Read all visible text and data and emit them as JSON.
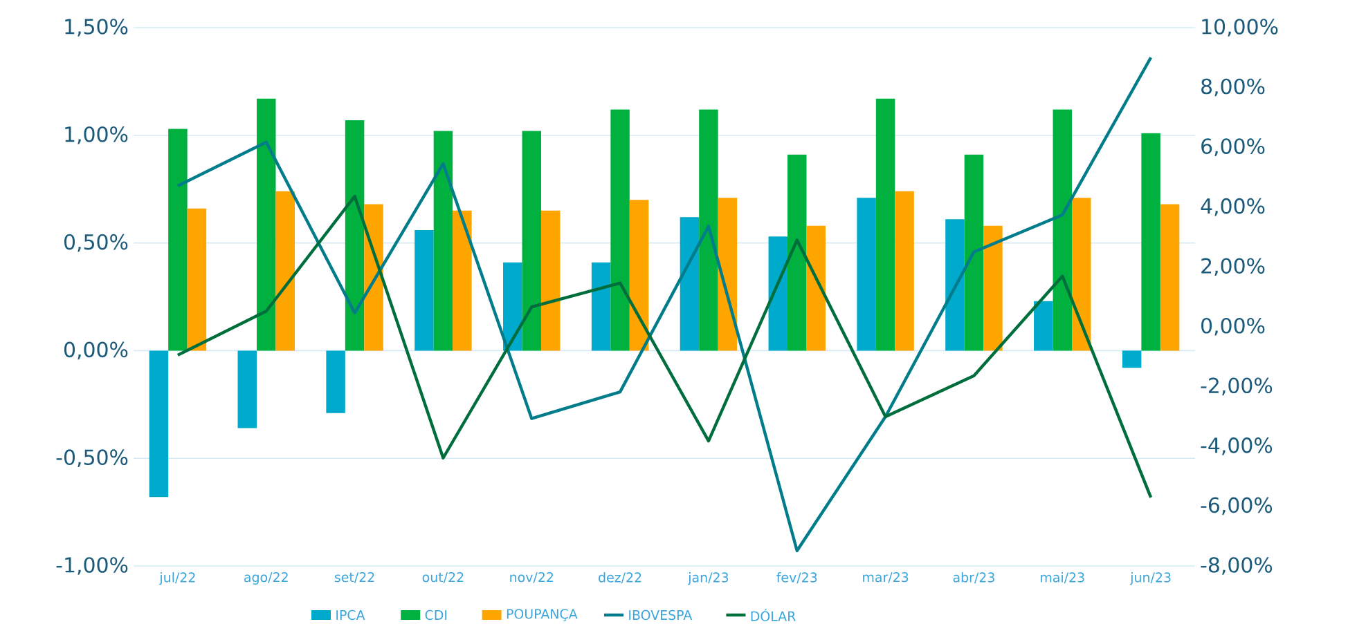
{
  "chart_data": {
    "type": "bar",
    "categories": [
      "jul/22",
      "ago/22",
      "set/22",
      "out/22",
      "nov/22",
      "dez/22",
      "jan/23",
      "fev/23",
      "mar/23",
      "abr/23",
      "mai/23",
      "jun/23"
    ],
    "series": [
      {
        "name": "IPCA",
        "color": "#00aacd",
        "values": [
          -0.68,
          -0.36,
          -0.29,
          0.56,
          0.41,
          0.41,
          0.62,
          0.53,
          0.71,
          0.61,
          0.23,
          -0.08
        ]
      },
      {
        "name": "CDI",
        "color": "#00b140",
        "values": [
          1.03,
          1.17,
          1.07,
          1.02,
          1.02,
          1.12,
          1.12,
          0.91,
          1.17,
          0.91,
          1.12,
          1.01
        ]
      },
      {
        "name": "POUPANÇA",
        "color": "#ffa500",
        "values": [
          0.66,
          0.74,
          0.68,
          0.65,
          0.65,
          0.7,
          0.71,
          0.58,
          0.74,
          0.58,
          0.71,
          0.68
        ]
      },
      {
        "name": "IBOVESPA",
        "type": "line",
        "axis": "y2",
        "color": "#007c8a",
        "values": [
          4.71,
          6.17,
          0.46,
          5.45,
          -3.07,
          -2.18,
          3.36,
          -7.49,
          -3.01,
          2.5,
          3.74,
          9.0
        ]
      },
      {
        "name": "DÓLAR",
        "type": "line",
        "axis": "y2",
        "color": "#006e3c",
        "values": [
          -0.95,
          0.52,
          4.36,
          -4.39,
          0.66,
          1.46,
          -3.82,
          2.9,
          -3.01,
          -1.64,
          1.69,
          -5.71
        ]
      }
    ],
    "ylim": [
      -1.0,
      1.5
    ],
    "yticks": [
      {
        "value": -1.0,
        "label": "-1,00%"
      },
      {
        "value": -0.5,
        "label": "-0,50%"
      },
      {
        "value": 0,
        "label": "0,00%"
      },
      {
        "value": 0.5,
        "label": "0,50%"
      },
      {
        "value": 1.0,
        "label": "1,00%"
      },
      {
        "value": 1.5,
        "label": "1,50%"
      }
    ],
    "y2lim": [
      -8,
      10
    ],
    "y2ticks": [
      {
        "value": -8,
        "label": "-8,00%"
      },
      {
        "value": -6,
        "label": "-6,00%"
      },
      {
        "value": -4,
        "label": "-4,00%"
      },
      {
        "value": -2,
        "label": "-2,00%"
      },
      {
        "value": 0,
        "label": "0,00%"
      },
      {
        "value": 2,
        "label": "2,00%"
      },
      {
        "value": 4,
        "label": "4,00%"
      },
      {
        "value": 6,
        "label": "6,00%"
      },
      {
        "value": 8,
        "label": "8,00%"
      },
      {
        "value": 10,
        "label": "10,00%"
      }
    ],
    "grid": "y",
    "legend": "bottom",
    "marker": "none",
    "line_style": "solid"
  }
}
